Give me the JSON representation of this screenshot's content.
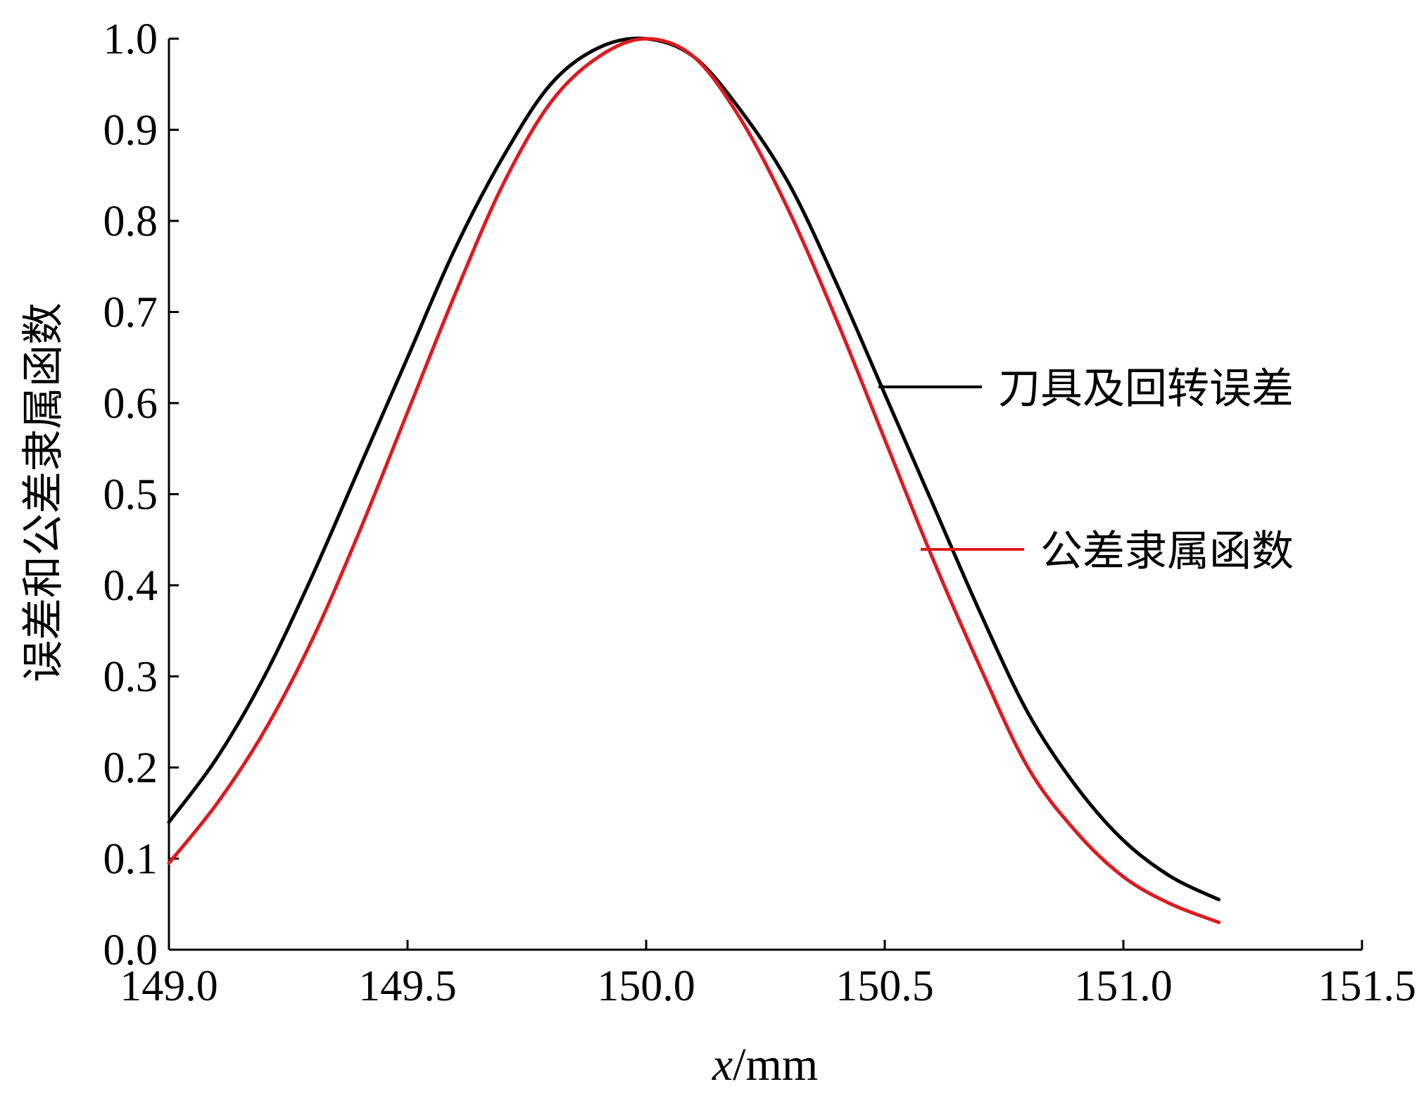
{
  "chart_data": {
    "type": "line",
    "xlabel_italic": "x",
    "xlabel_unit": "/mm",
    "ylabel": "误差和公差隶属函数",
    "xlim": [
      149.0,
      151.5
    ],
    "ylim": [
      0.0,
      1.0
    ],
    "xticks": [
      "149.0",
      "149.5",
      "150.0",
      "150.5",
      "151.0",
      "151.5"
    ],
    "yticks": [
      "0.0",
      "0.1",
      "0.2",
      "0.3",
      "0.4",
      "0.5",
      "0.6",
      "0.7",
      "0.8",
      "0.9",
      "1.0"
    ],
    "legend_placement": "inline-right",
    "series": [
      {
        "name": "刀具及回转误差",
        "color": "#000000",
        "x": [
          149.0,
          149.1,
          149.2,
          149.3,
          149.4,
          149.5,
          149.6,
          149.7,
          149.8,
          149.9,
          150.0,
          150.1,
          150.2,
          150.3,
          150.4,
          150.5,
          150.6,
          150.7,
          150.8,
          150.9,
          151.0,
          151.1,
          151.2
        ],
        "y": [
          0.14,
          0.21,
          0.3,
          0.41,
          0.53,
          0.65,
          0.77,
          0.87,
          0.95,
          0.99,
          1.0,
          0.98,
          0.92,
          0.84,
          0.73,
          0.61,
          0.49,
          0.37,
          0.26,
          0.18,
          0.12,
          0.08,
          0.055
        ]
      },
      {
        "name": "公差隶属函数",
        "color": "#e0191e",
        "x": [
          149.0,
          149.1,
          149.2,
          149.3,
          149.4,
          149.5,
          149.6,
          149.7,
          149.8,
          149.9,
          150.0,
          150.1,
          150.2,
          150.3,
          150.4,
          150.5,
          150.6,
          150.7,
          150.8,
          150.9,
          151.0,
          151.1,
          151.2
        ],
        "y": [
          0.095,
          0.16,
          0.24,
          0.34,
          0.46,
          0.59,
          0.72,
          0.84,
          0.93,
          0.98,
          1.0,
          0.98,
          0.91,
          0.81,
          0.69,
          0.56,
          0.43,
          0.31,
          0.2,
          0.13,
          0.08,
          0.05,
          0.03
        ]
      }
    ]
  }
}
